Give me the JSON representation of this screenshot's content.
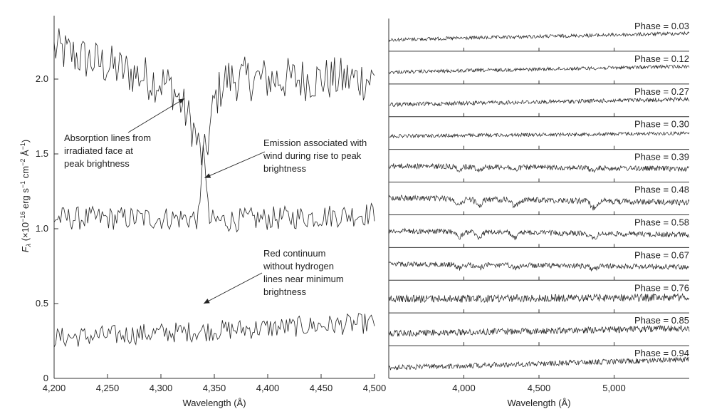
{
  "chart_data": [
    {
      "type": "line",
      "xlabel": "Wavelength (Å)",
      "ylabel": "F_λ (×10^−16 erg s^−1 cm^−2 Å^−1)",
      "ylabel_parts": {
        "f": "F",
        "sub": "λ",
        "open": " (×10",
        "e1": "−16",
        "erg": " erg s",
        "e2": "−1",
        "cm": " cm",
        "e3": "−2",
        "ang": " Å",
        "e4": "−1",
        "close": ")"
      },
      "xlim": [
        4200,
        4500
      ],
      "ylim": [
        0,
        2.5
      ],
      "xticks": [
        4200,
        4250,
        4300,
        4350,
        4400,
        4450,
        4500
      ],
      "xtick_labels": [
        "4,200",
        "4,250",
        "4,300",
        "4,350",
        "4,400",
        "4,450",
        "4,500"
      ],
      "yticks": [
        0,
        0.5,
        1.0,
        1.5,
        2.0
      ],
      "ytick_labels": [
        "0",
        "0.5",
        "1.0",
        "1.5",
        "2.0"
      ],
      "series": [
        {
          "description": "irradiated face, peak brightness",
          "baseline": 2.0,
          "noise": 0.15,
          "x": [
            4200,
            4300,
            4310,
            4320,
            4330,
            4335,
            4340,
            4345,
            4350,
            4360,
            4500
          ],
          "y": [
            2.2,
            1.98,
            1.95,
            1.82,
            1.68,
            1.55,
            1.45,
            1.62,
            1.85,
            2.0,
            2.0
          ]
        },
        {
          "description": "emission during rise",
          "baseline": 1.07,
          "noise": 0.08,
          "x": [
            4200,
            4336,
            4338,
            4340,
            4342,
            4345,
            4500
          ],
          "y": [
            1.07,
            1.07,
            1.3,
            1.7,
            1.3,
            1.05,
            1.1
          ]
        },
        {
          "description": "red continuum, minimum brightness",
          "baseline": 0.27,
          "noise": 0.07,
          "x": [
            4200,
            4500
          ],
          "y": [
            0.27,
            0.37
          ]
        }
      ],
      "annotations": [
        {
          "lines": [
            "Absorption lines from",
            "irradiated face at",
            "peak brightness"
          ],
          "target": [
            4322,
            1.87
          ]
        },
        {
          "lines": [
            "Emission associated with",
            "wind during rise to peak",
            "brightness"
          ],
          "target": [
            4341,
            1.34
          ]
        },
        {
          "lines": [
            "Red continuum",
            "without hydrogen",
            "lines near minimum",
            "brightness"
          ],
          "target": [
            4340,
            0.5
          ]
        }
      ]
    },
    {
      "type": "line",
      "xlabel": "Wavelength (Å)",
      "xlim": [
        3500,
        5500
      ],
      "xticks": [
        4000,
        4500,
        5000
      ],
      "xtick_labels": [
        "4,000",
        "4,500",
        "5,000"
      ],
      "label_prefix": "Phase = ",
      "phases": [
        "0.03",
        "0.12",
        "0.27",
        "0.30",
        "0.39",
        "0.48",
        "0.58",
        "0.67",
        "0.76",
        "0.85",
        "0.94"
      ],
      "absorption_depth": [
        0,
        0,
        0,
        0,
        0.35,
        0.8,
        0.65,
        0.4,
        0,
        0,
        0
      ],
      "noise": [
        0.3,
        0.3,
        0.35,
        0.3,
        0.45,
        0.5,
        0.45,
        0.45,
        0.65,
        0.55,
        0.45
      ],
      "slope": [
        0.55,
        0.5,
        0.45,
        0.25,
        -0.25,
        -0.4,
        -0.35,
        -0.25,
        0.15,
        0.45,
        0.7
      ]
    }
  ]
}
